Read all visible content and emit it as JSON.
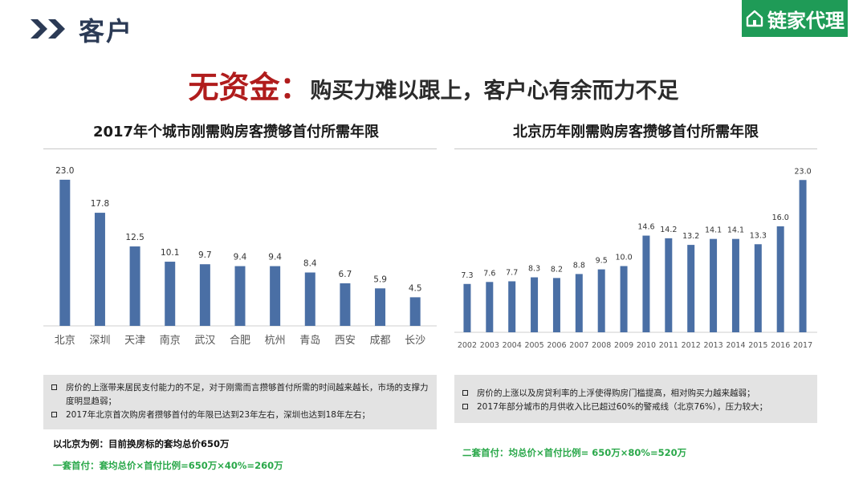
{
  "header": {
    "title": "客户",
    "logo_text": "链家代理",
    "logo_icon": "house-icon",
    "brand_color": "#1f9b57"
  },
  "headline": {
    "emphasis": "无资金：",
    "text": "购买力难以跟上，客户心有余而力不足"
  },
  "chart_data": [
    {
      "type": "bar",
      "title": "2017年个城市刚需购房客攒够首付所需年限",
      "categories": [
        "北京",
        "深圳",
        "天津",
        "南京",
        "武汉",
        "合肥",
        "杭州",
        "青岛",
        "西安",
        "成都",
        "长沙"
      ],
      "values": [
        23.0,
        17.8,
        12.5,
        10.1,
        9.7,
        9.4,
        9.4,
        8.4,
        6.7,
        5.9,
        4.5
      ],
      "value_labels": [
        "23.0",
        "17.8",
        "12.5",
        "10.1",
        "9.7",
        "9.4",
        "9.4",
        "8.4",
        "6.7",
        "5.9",
        "4.5"
      ],
      "ylim": [
        0,
        24
      ],
      "grid": false,
      "bar_color": "#4a6fa5"
    },
    {
      "type": "bar",
      "title": "北京历年刚需购房客攒够首付所需年限",
      "categories": [
        "2002",
        "2003",
        "2004",
        "2005",
        "2006",
        "2007",
        "2008",
        "2009",
        "2010",
        "2011",
        "2012",
        "2013",
        "2014",
        "2015",
        "2016",
        "2017"
      ],
      "values": [
        7.3,
        7.6,
        7.7,
        8.3,
        8.2,
        8.8,
        9.5,
        10.0,
        14.6,
        14.2,
        13.2,
        14.1,
        14.1,
        13.3,
        16.0,
        23.0
      ],
      "value_labels": [
        "7.3",
        "7.6",
        "7.7",
        "8.3",
        "8.2",
        "8.8",
        "9.5",
        "10.0",
        "14.6",
        "14.2",
        "13.2",
        "14.1",
        "14.1",
        "13.3",
        "16.0",
        "23.0"
      ],
      "ylim": [
        0,
        24
      ],
      "grid": false,
      "bar_color": "#4a6fa5"
    }
  ],
  "left_panel": {
    "notes": [
      "房价的上涨带来居民支付能力的不足，对于刚需而言攒够首付所需的时间越来越长，市场的支撑力度明显趋弱；",
      "2017年北京首次购房者攒够首付的年限已达到23年左右，深圳也达到18年左右；"
    ],
    "example": "以北京为例：目前换房标的套均总价650万",
    "calc": "一套首付：套均总价×首付比例=650万×40%=260万"
  },
  "right_panel": {
    "notes": [
      "房价的上涨以及房贷利率的上浮使得购房门槛提高，相对购买力越来越弱；",
      "2017年部分城市的月供收入比已超过60%的警戒线（北京76%），压力较大；"
    ],
    "calc": "二套首付：均总价×首付比例= 650万×80%=520万"
  },
  "colors": {
    "headline_red": "#b01c1c",
    "calc_green": "#2aa84a",
    "title_navy": "#2b3a55"
  }
}
